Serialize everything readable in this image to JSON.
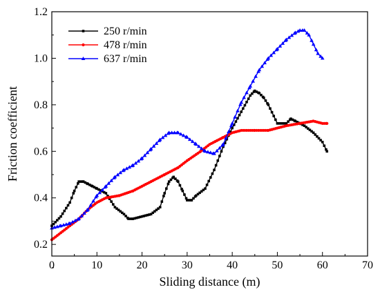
{
  "chart_data": {
    "type": "line",
    "xlabel": "Sliding distance (m)",
    "ylabel": "Friction coefficient",
    "xlim": [
      0,
      70
    ],
    "ylim": [
      0.15,
      1.2
    ],
    "xticks": [
      0,
      10,
      20,
      30,
      40,
      50,
      60,
      70
    ],
    "yticks": [
      0.2,
      0.4,
      0.6,
      0.8,
      1.0,
      1.2
    ],
    "xtick_labels": [
      "0",
      "10",
      "20",
      "30",
      "40",
      "50",
      "60",
      "70"
    ],
    "ytick_labels": [
      "0.2",
      "0.4",
      "0.6",
      "0.8",
      "1.0",
      "1.2"
    ],
    "grid": false,
    "legend_position": "top-left",
    "series": [
      {
        "name": "250 r/min",
        "color": "#000000",
        "marker": "square",
        "x": [
          0,
          2,
          4,
          5,
          6,
          7,
          8,
          9,
          10,
          12,
          14,
          16,
          17,
          18,
          20,
          22,
          24,
          25,
          26,
          27,
          28,
          29,
          30,
          31,
          32,
          34,
          36,
          38,
          40,
          42,
          44,
          45,
          46,
          47,
          48,
          50,
          52,
          53,
          54,
          56,
          58,
          60,
          61
        ],
        "y": [
          0.28,
          0.32,
          0.38,
          0.43,
          0.47,
          0.47,
          0.46,
          0.45,
          0.44,
          0.42,
          0.36,
          0.33,
          0.31,
          0.31,
          0.32,
          0.33,
          0.36,
          0.42,
          0.47,
          0.49,
          0.47,
          0.43,
          0.39,
          0.39,
          0.41,
          0.44,
          0.52,
          0.62,
          0.7,
          0.77,
          0.84,
          0.86,
          0.85,
          0.83,
          0.8,
          0.72,
          0.72,
          0.74,
          0.73,
          0.71,
          0.68,
          0.64,
          0.6
        ]
      },
      {
        "name": "478 r/min",
        "color": "#ff0000",
        "marker": "circle",
        "x": [
          0,
          2,
          4,
          6,
          8,
          10,
          12,
          15,
          18,
          20,
          22,
          25,
          28,
          30,
          33,
          35,
          38,
          40,
          42,
          45,
          48,
          50,
          52,
          55,
          58,
          60,
          61
        ],
        "y": [
          0.22,
          0.25,
          0.28,
          0.31,
          0.35,
          0.38,
          0.4,
          0.41,
          0.43,
          0.45,
          0.47,
          0.5,
          0.53,
          0.56,
          0.6,
          0.63,
          0.66,
          0.68,
          0.69,
          0.69,
          0.69,
          0.7,
          0.71,
          0.72,
          0.73,
          0.72,
          0.72
        ]
      },
      {
        "name": "637 r/min",
        "color": "#0000ff",
        "marker": "triangle",
        "x": [
          0,
          2,
          4,
          6,
          8,
          10,
          12,
          14,
          16,
          18,
          20,
          22,
          24,
          26,
          28,
          30,
          32,
          34,
          36,
          38,
          40,
          42,
          44,
          46,
          48,
          50,
          52,
          54,
          55,
          56,
          57,
          58,
          59,
          60
        ],
        "y": [
          0.27,
          0.28,
          0.29,
          0.31,
          0.35,
          0.41,
          0.45,
          0.49,
          0.52,
          0.54,
          0.57,
          0.61,
          0.65,
          0.68,
          0.68,
          0.66,
          0.63,
          0.6,
          0.59,
          0.63,
          0.72,
          0.81,
          0.88,
          0.95,
          1.0,
          1.04,
          1.08,
          1.11,
          1.12,
          1.12,
          1.1,
          1.06,
          1.02,
          1.0
        ]
      }
    ]
  }
}
